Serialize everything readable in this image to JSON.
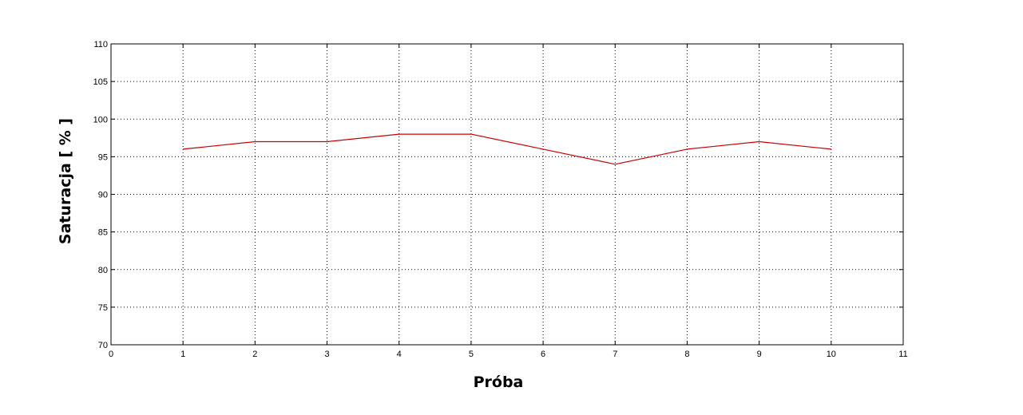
{
  "chart_data": {
    "type": "line",
    "title": "",
    "xlabel": "Próba",
    "ylabel": "Saturacja [ % ]",
    "xlim": [
      0,
      11
    ],
    "ylim": [
      70,
      110
    ],
    "xticks": [
      "0",
      "1",
      "2",
      "3",
      "4",
      "5",
      "6",
      "7",
      "8",
      "9",
      "10",
      "11"
    ],
    "yticks": [
      "70",
      "75",
      "80",
      "85",
      "90",
      "95",
      "100",
      "105",
      "110"
    ],
    "grid": true,
    "grid_style": "dotted",
    "series": [
      {
        "color": "#cc0000",
        "x": [
          1,
          2,
          3,
          4,
          5,
          6,
          7,
          8,
          9,
          10
        ],
        "y": [
          96,
          97,
          97,
          98,
          98,
          96,
          94,
          96,
          97,
          96
        ]
      }
    ]
  }
}
